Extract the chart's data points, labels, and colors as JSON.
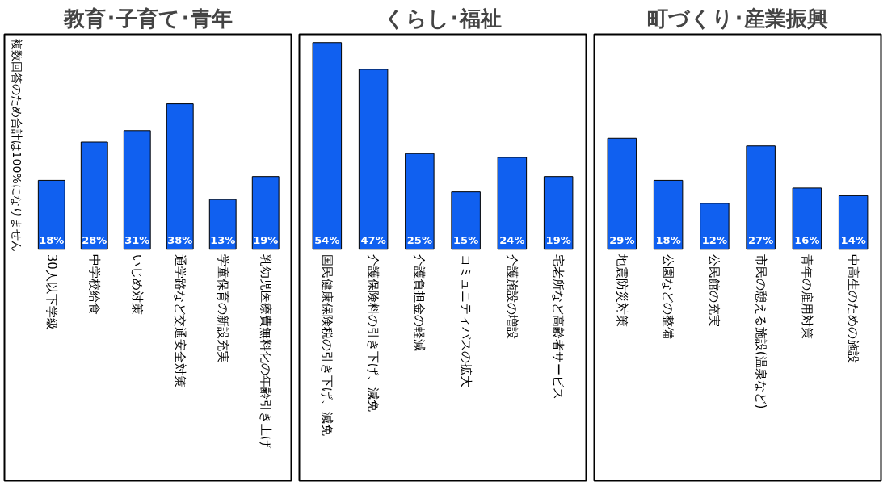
{
  "chart_data": [
    {
      "type": "bar",
      "title": "教育･子育て･青年",
      "categories": [
        "30人以下学級",
        "中学校給食",
        "いじめ対策",
        "通学路など交通安全対策",
        "学童保育の新設充実",
        "乳幼児医療費無料化の年齢引き上げ"
      ],
      "values": [
        18,
        28,
        31,
        38,
        13,
        19
      ],
      "value_labels": [
        "18%",
        "28%",
        "31%",
        "38%",
        "13%",
        "19%"
      ],
      "color": "#1060f0",
      "annotations": [
        "複数回答のため合計は100%になりません"
      ]
    },
    {
      "type": "bar",
      "title": "くらし･福祉",
      "categories": [
        "国民健康保険税の引き下げ、減免",
        "介護保険料の引き下げ、減免",
        "介護負担金の軽減",
        "コミュニティバスの拡大",
        "介護施設の増設",
        "宅老所など高齢者サービス"
      ],
      "values": [
        54,
        47,
        25,
        15,
        24,
        19
      ],
      "value_labels": [
        "54%",
        "47%",
        "25%",
        "15%",
        "24%",
        "19%"
      ],
      "color": "#1060f0"
    },
    {
      "type": "bar",
      "title": "町づくり･産業振興",
      "categories": [
        "地震防災対策",
        "公園などの整備",
        "公民館の充実",
        "市民の憩える施設(温泉など)",
        "青年の雇用対策",
        "中高生のための施設"
      ],
      "values": [
        29,
        18,
        12,
        27,
        16,
        14
      ],
      "value_labels": [
        "29%",
        "18%",
        "12%",
        "27%",
        "16%",
        "14%"
      ],
      "color": "#1060f0"
    }
  ]
}
